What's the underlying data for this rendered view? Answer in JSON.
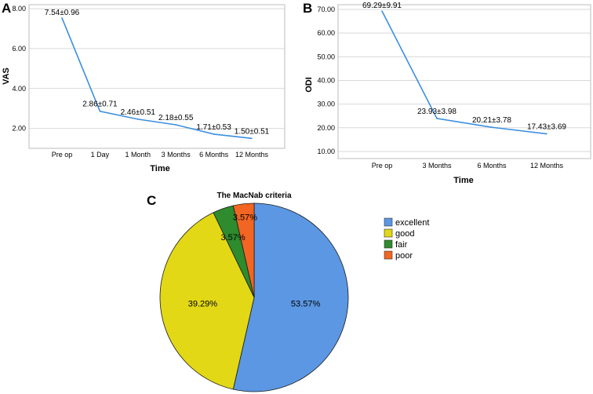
{
  "panels": {
    "a": "A",
    "b": "B",
    "c": "C"
  },
  "chart_data": [
    {
      "type": "line",
      "ylabel": "VAS",
      "xlabel": "Time",
      "categories": [
        "Pre op",
        "1 Day",
        "1 Month",
        "3 Months",
        "6 Months",
        "12 Months"
      ],
      "values": [
        7.54,
        2.86,
        2.46,
        2.18,
        1.71,
        1.5
      ],
      "data_labels": [
        "7.54±0.96",
        "2.86±0.71",
        "2.46±0.51",
        "2.18±0.55",
        "1.71±0.53",
        "1.50±0.51"
      ],
      "yticks": [
        "2.00",
        "4.00",
        "6.00",
        "8.00"
      ],
      "ylim": [
        1.0,
        8.2
      ],
      "grid": true,
      "color": "#3c8fe0"
    },
    {
      "type": "line",
      "ylabel": "ODI",
      "xlabel": "Time",
      "categories": [
        "Pre op",
        "3 Months",
        "6 Months",
        "12 Months"
      ],
      "values": [
        69.29,
        23.93,
        20.21,
        17.43
      ],
      "data_labels": [
        "69.29±9.91",
        "23.93±3.98",
        "20.21±3.78",
        "17.43±3.69"
      ],
      "yticks": [
        "10.00",
        "20.00",
        "30.00",
        "40.00",
        "50.00",
        "60.00",
        "70.00"
      ],
      "ylim": [
        7,
        72
      ],
      "grid": true,
      "color": "#3c8fe0"
    },
    {
      "type": "pie",
      "title": "The MacNab criteria",
      "slices": [
        {
          "label": "excellent",
          "value": 53.57,
          "text": "53.57%",
          "color": "#5b97e3"
        },
        {
          "label": "good",
          "value": 39.29,
          "text": "39.29%",
          "color": "#e2d816"
        },
        {
          "label": "fair",
          "value": 3.57,
          "text": "3.57%",
          "color": "#2e8b2e"
        },
        {
          "label": "poor",
          "value": 3.57,
          "text": "3.57%",
          "color": "#f26522"
        }
      ],
      "legend": "right"
    }
  ]
}
